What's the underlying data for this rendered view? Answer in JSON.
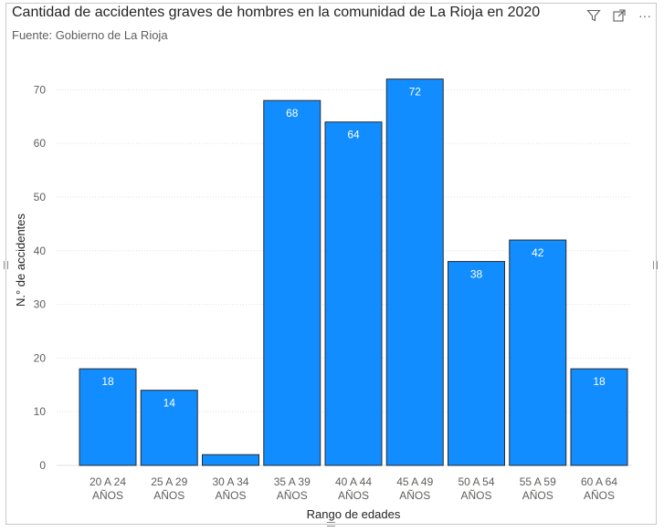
{
  "visual": {
    "title": "Cantidad de accidentes graves de hombres en la comunidad de La Rioja en 2020",
    "subtitle": "Fuente: Gobierno de La Rioja",
    "toolbar": {
      "filter_icon": "filter-icon",
      "focus_icon": "focus-mode-icon",
      "more_icon": "more-options-icon",
      "more_label": "···"
    }
  },
  "colors": {
    "bar": "#118DFF",
    "bar_stroke": "#2b2b2b",
    "grid": "#e1e1e1",
    "axis_text": "#605e5c",
    "data_label": "#ffffff"
  },
  "chart_data": {
    "type": "bar",
    "title": "Cantidad de accidentes graves de hombres en la comunidad de La Rioja en 2020",
    "subtitle": "Fuente: Gobierno de La Rioja",
    "xlabel": "Rango de edades",
    "ylabel": "N.° de accidentes",
    "ylim": [
      0,
      75
    ],
    "yticks": [
      0,
      10,
      20,
      30,
      40,
      50,
      60,
      70
    ],
    "grid": true,
    "categories": [
      [
        "20 A 24",
        "AÑOS"
      ],
      [
        "25 A 29",
        "AÑOS"
      ],
      [
        "30 A 34",
        "AÑOS"
      ],
      [
        "35 A 39",
        "AÑOS"
      ],
      [
        "40 A 44",
        "AÑOS"
      ],
      [
        "45 A 49",
        "AÑOS"
      ],
      [
        "50 A 54",
        "AÑOS"
      ],
      [
        "55 A 59",
        "AÑOS"
      ],
      [
        "60 A 64",
        "AÑOS"
      ]
    ],
    "values": [
      18,
      14,
      2,
      68,
      64,
      72,
      38,
      42,
      18
    ],
    "data_labels": [
      "18",
      "14",
      "",
      "68",
      "64",
      "72",
      "38",
      "42",
      "18"
    ]
  }
}
